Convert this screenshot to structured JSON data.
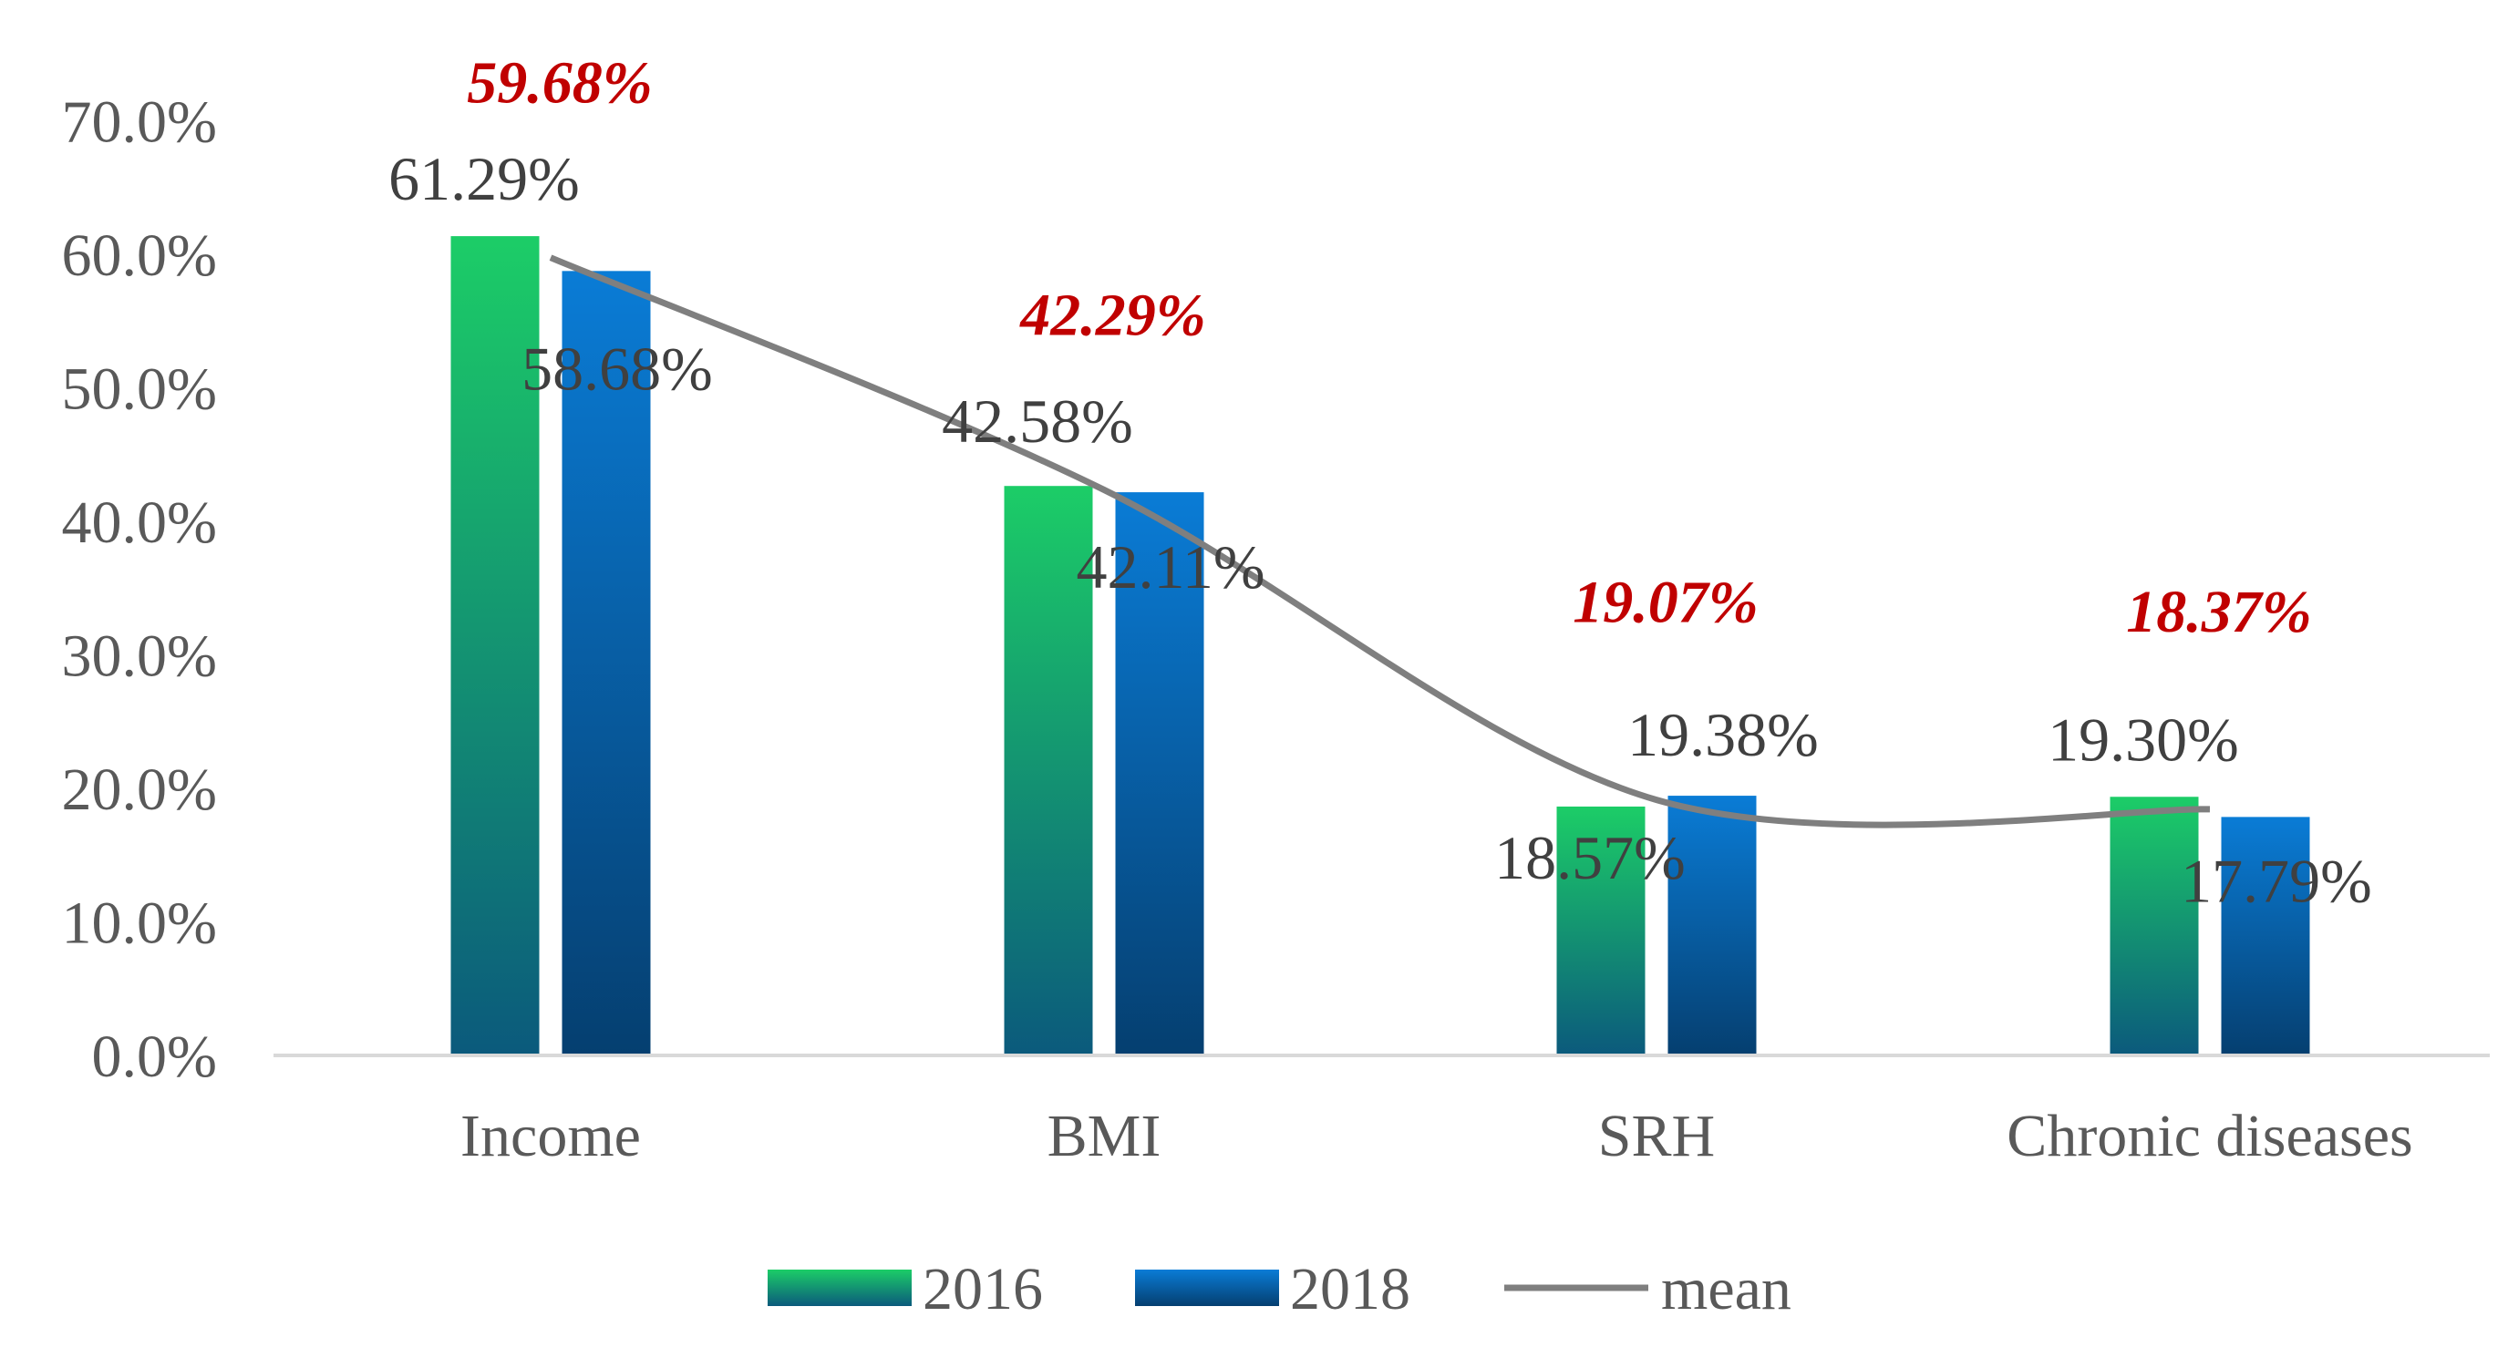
{
  "chart_data": {
    "type": "bar",
    "categories": [
      "Income",
      "BMI",
      "SRH",
      "Chronic diseases"
    ],
    "series": [
      {
        "name": "2016",
        "kind": "bar",
        "values": [
          61.29,
          42.58,
          18.57,
          19.3
        ],
        "labels": [
          "61.29%",
          "42.58%",
          "18.57%",
          "19.30%"
        ],
        "color_top": "#1ccd67",
        "color_bottom": "#0b5a7c"
      },
      {
        "name": "2018",
        "kind": "bar",
        "values": [
          58.68,
          42.11,
          19.38,
          17.79
        ],
        "labels": [
          "58.68%",
          "42.11%",
          "19.38%",
          "17.79%"
        ],
        "color_top": "#0a7cd6",
        "color_bottom": "#053f70"
      },
      {
        "name": "mean",
        "kind": "line",
        "values": [
          59.68,
          42.29,
          19.07,
          18.37
        ],
        "labels": [
          "59.68%",
          "42.29%",
          "19.07%",
          "18.37%"
        ],
        "color": "#7f7f7f",
        "label_color": "#c00000"
      }
    ],
    "yticks": [
      "0.0%",
      "10.0%",
      "20.0%",
      "30.0%",
      "40.0%",
      "50.0%",
      "60.0%",
      "70.0%"
    ],
    "ylim": [
      0,
      70
    ],
    "title": "",
    "xlabel": "",
    "ylabel": "",
    "legend": [
      "2016",
      "2018",
      "mean"
    ],
    "legend_position": "bottom",
    "grid": false
  }
}
